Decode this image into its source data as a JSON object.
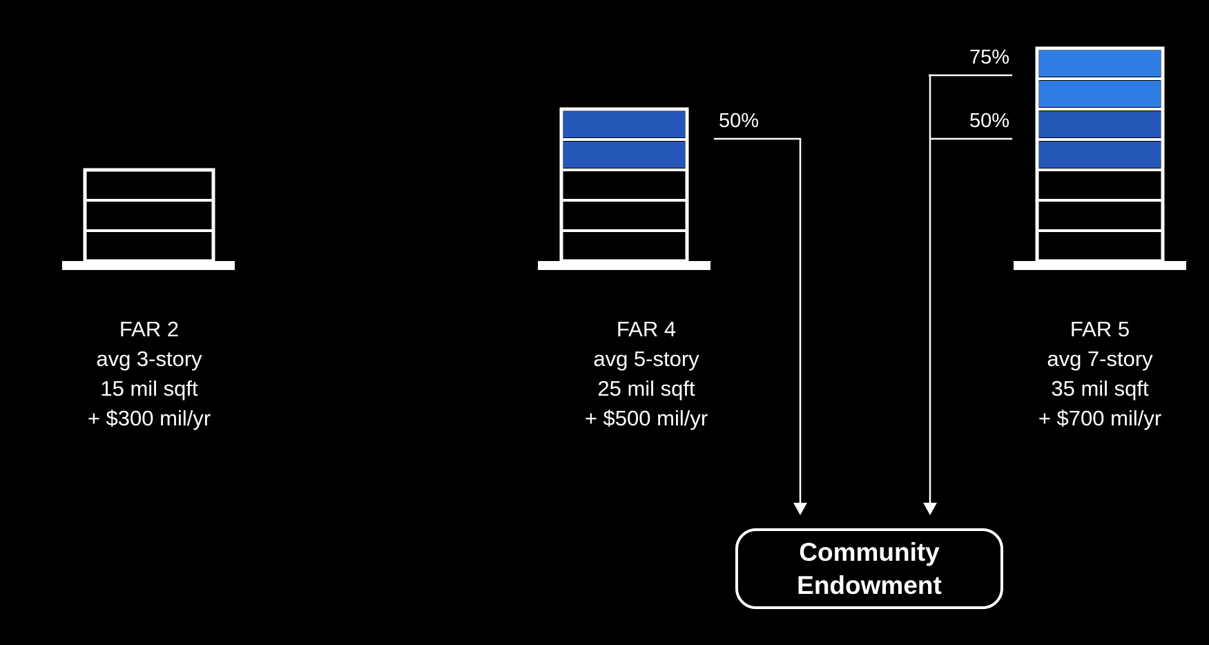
{
  "colors": {
    "background": "#000000",
    "outline": "#ffffff",
    "fill_50": "#2457b8",
    "fill_75": "#2f7de3"
  },
  "buildings": [
    {
      "id": "far2",
      "floors_drawn": 3,
      "shaded": [],
      "caption": [
        "FAR 2",
        "avg 3-story",
        "15 mil sqft",
        "+ $300 mil/yr"
      ]
    },
    {
      "id": "far4",
      "floors_drawn": 5,
      "shaded": [
        "fill_50",
        "fill_50"
      ],
      "caption": [
        "FAR 4",
        "avg 5-story",
        "25 mil sqft",
        "+ $500 mil/yr"
      ]
    },
    {
      "id": "far5",
      "floors_drawn": 7,
      "shaded": [
        "fill_75",
        "fill_75",
        "fill_50",
        "fill_50"
      ],
      "caption": [
        "FAR 5",
        "avg 7-story",
        "35 mil sqft",
        "+ $700 mil/yr"
      ]
    }
  ],
  "percent_labels": {
    "far4": "50%",
    "far5_upper": "75%",
    "far5_lower": "50%"
  },
  "endowment": {
    "line1": "Community",
    "line2": "Endowment"
  }
}
